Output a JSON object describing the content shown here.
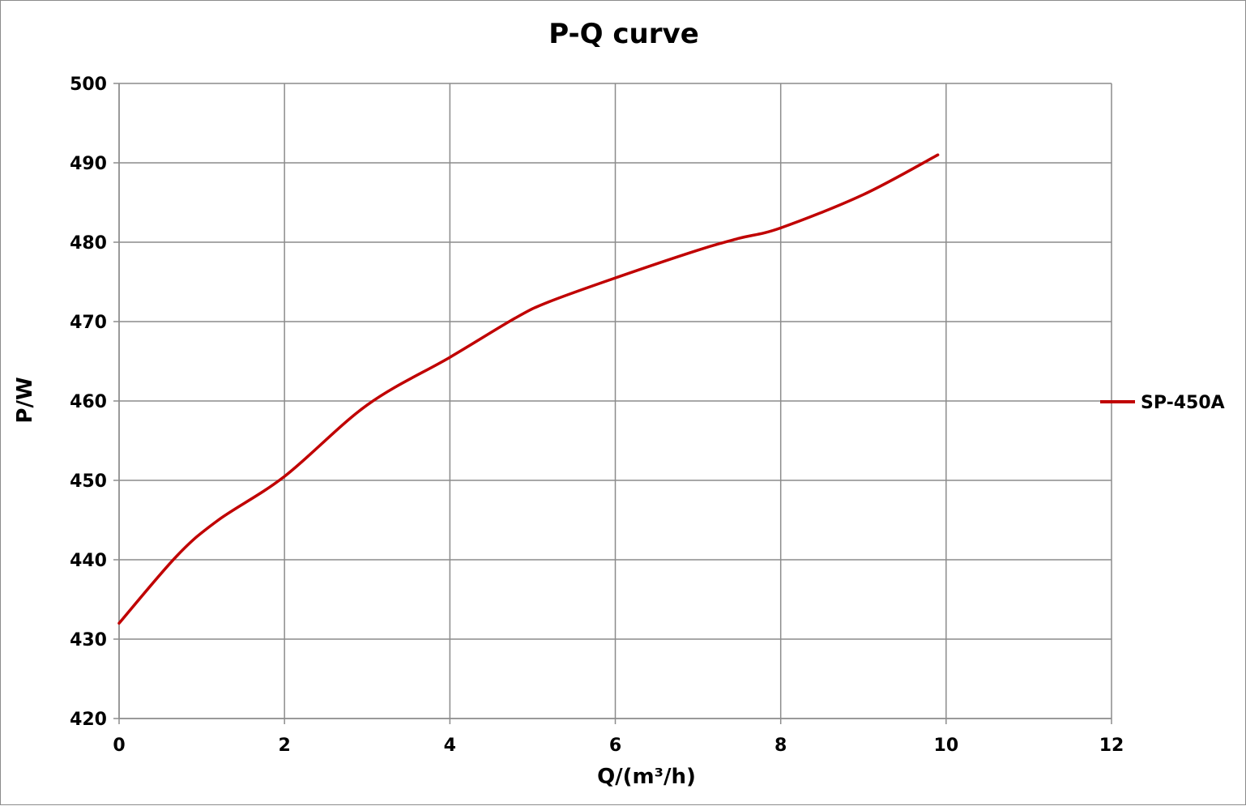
{
  "chart_data": {
    "type": "line",
    "title": "P-Q  curve",
    "xlabel": "Q/(m³/h)",
    "ylabel": "P/W",
    "xlim": [
      0,
      12
    ],
    "ylim": [
      420,
      500
    ],
    "xticks": [
      0,
      2,
      4,
      6,
      8,
      10,
      12
    ],
    "yticks": [
      420,
      430,
      440,
      450,
      460,
      470,
      480,
      490,
      500
    ],
    "grid": true,
    "legend_position": "right",
    "series": [
      {
        "name": "SP-450A",
        "color": "#c00000",
        "x": [
          0,
          0.7,
          1.2,
          2.0,
          3.0,
          4.0,
          4.8,
          5.2,
          6.0,
          7.0,
          7.5,
          8.0,
          9.0,
          9.9
        ],
        "y": [
          432,
          440.5,
          445,
          450.5,
          459.5,
          465.5,
          470.5,
          472.5,
          475.5,
          479,
          480.5,
          481.8,
          486,
          491
        ]
      }
    ]
  }
}
